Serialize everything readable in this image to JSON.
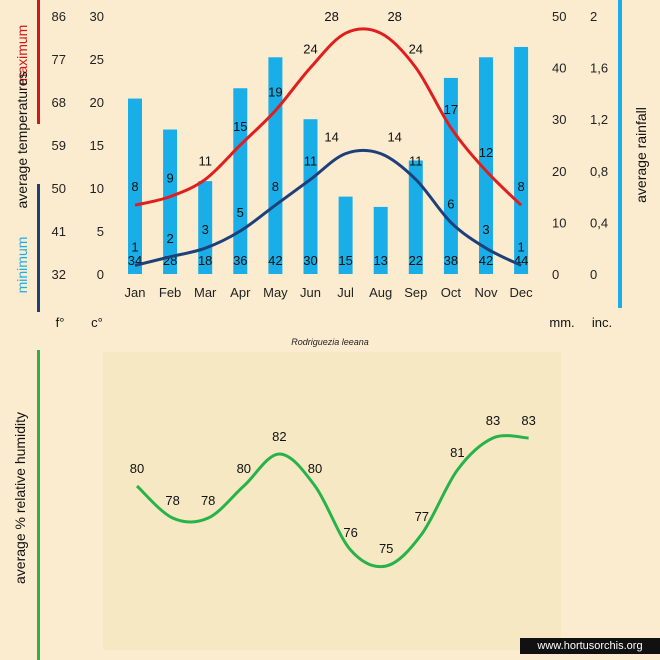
{
  "chart_data": [
    {
      "type": "bar+line",
      "title": "",
      "caption": "Rodriguezia leeana",
      "categories": [
        "Jan",
        "Feb",
        "Mar",
        "Apr",
        "May",
        "Jun",
        "Jul",
        "Aug",
        "Sep",
        "Oct",
        "Nov",
        "Dec"
      ],
      "series": [
        {
          "name": "average rainfall",
          "type": "bar",
          "unit": "mm",
          "values": [
            34,
            28,
            18,
            36,
            42,
            30,
            15,
            13,
            22,
            38,
            42,
            44
          ],
          "labels": [
            "34",
            "28",
            "18",
            "36",
            "42",
            "30",
            "15",
            "13",
            "22",
            "38",
            "42",
            "44"
          ]
        },
        {
          "name": "maximum",
          "type": "line",
          "unit": "°C",
          "values": [
            8,
            9,
            11,
            15,
            19,
            24,
            28,
            28,
            24,
            17,
            12,
            8
          ],
          "labels": [
            "8",
            "9",
            "11",
            "15",
            "19",
            "24",
            "28",
            "28",
            "24",
            "17",
            "12",
            "8"
          ]
        },
        {
          "name": "minimum",
          "type": "line",
          "unit": "°C",
          "values": [
            1,
            2,
            3,
            5,
            8,
            11,
            14,
            14,
            11,
            6,
            3,
            1
          ],
          "labels": [
            "1",
            "2",
            "3",
            "5",
            "8",
            "11",
            "14",
            "14",
            "11",
            "6",
            "3",
            "1"
          ]
        }
      ],
      "axes": {
        "left_f": {
          "unit_label": "f°",
          "ticks": [
            "86",
            "77",
            "68",
            "59",
            "50",
            "41",
            "32"
          ]
        },
        "left_c": {
          "unit_label": "c°",
          "ylim": [
            0,
            30
          ],
          "ticks": [
            "30",
            "25",
            "20",
            "15",
            "10",
            "5",
            "0"
          ]
        },
        "right_mm": {
          "unit_label": "mm.",
          "ylim": [
            0,
            50
          ],
          "ticks": [
            "50",
            "40",
            "30",
            "20",
            "10",
            "0"
          ]
        },
        "right_inch": {
          "unit_label": "inc.",
          "ticks": [
            "2",
            "1,6",
            "1,2",
            "0,8",
            "0,4",
            "0"
          ]
        }
      },
      "titles": {
        "left_maximum": "maximum",
        "left_average": "average temperatures",
        "left_minimum": "minimum",
        "right": "average rainfall"
      },
      "colors": {
        "bar": "#1aaee8",
        "maximum": "#e01e1e",
        "minimum": "#1f3f7a",
        "left_max_bar": "#d01818",
        "left_min_bar": "#1f3f7a",
        "right_bar": "#1aaee8"
      }
    },
    {
      "type": "line",
      "title": "",
      "ylabel": "average %  relative humidity",
      "categories": [
        "Jan",
        "Feb",
        "Mar",
        "Apr",
        "May",
        "Jun",
        "Jul",
        "Aug",
        "Sep",
        "Oct",
        "Nov",
        "Dec"
      ],
      "values": [
        80,
        78,
        78,
        80,
        82,
        80,
        76,
        75,
        77,
        81,
        83,
        83
      ],
      "labels": [
        "80",
        "78",
        "78",
        "80",
        "82",
        "80",
        "76",
        "75",
        "77",
        "81",
        "83",
        "83"
      ],
      "ylim": [
        74,
        84
      ],
      "colors": {
        "line": "#27b34a",
        "side_bar": "#27b34a",
        "panel": "#f7e9c8"
      }
    }
  ],
  "watermark": "www.hortusorchis.org"
}
